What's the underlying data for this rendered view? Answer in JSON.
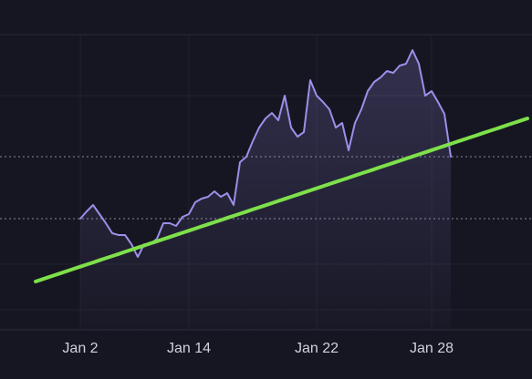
{
  "chart_data": {
    "type": "line",
    "categories": [
      null,
      null,
      null,
      null,
      null,
      null,
      null,
      null,
      null,
      null,
      null,
      null,
      "Jan 2",
      null,
      null,
      null,
      null,
      null,
      null,
      null,
      null,
      null,
      null,
      null,
      null,
      null,
      null,
      null,
      null,
      "Jan 14",
      null,
      null,
      null,
      null,
      null,
      null,
      null,
      null,
      null,
      null,
      null,
      null,
      null,
      null,
      null,
      null,
      null,
      null,
      null,
      "Jan 22",
      null,
      null,
      null,
      null,
      null,
      null,
      null,
      null,
      null,
      null,
      null,
      null,
      null,
      null,
      null,
      null,
      null,
      "Jan 28",
      null,
      null,
      null,
      null,
      null,
      null,
      null,
      null,
      null,
      null,
      null,
      null,
      null,
      null,
      null
    ],
    "ylim": [
      0,
      324
    ],
    "series": [
      {
        "color": "#9b8fe8",
        "area": true,
        "values": [
          null,
          null,
          null,
          null,
          null,
          null,
          null,
          null,
          null,
          null,
          null,
          null,
          122,
          130,
          137,
          127,
          117,
          106,
          104,
          104,
          94,
          80,
          94,
          94,
          100,
          117,
          117,
          114,
          124,
          127,
          140,
          144,
          146,
          152,
          146,
          150,
          137,
          184,
          190,
          207,
          222,
          232,
          238,
          230,
          257,
          222,
          212,
          217,
          274,
          257,
          250,
          242,
          222,
          227,
          197,
          227,
          242,
          262,
          272,
          277,
          284,
          282,
          290,
          292,
          307,
          292,
          257,
          262,
          250,
          237,
          190,
          null,
          null,
          null,
          null,
          null,
          null,
          null,
          null,
          null,
          null,
          null,
          null
        ]
      },
      {
        "color": "#7ee04a",
        "area": false,
        "values": [
          null,
          null,
          null,
          null,
          null,
          53.0,
          55.3,
          57.7,
          60.0,
          62.3,
          64.6,
          67.0,
          69.3,
          71.6,
          73.9,
          76.3,
          78.6,
          80.9,
          83.2,
          85.6,
          87.9,
          90.2,
          92.5,
          94.9,
          97.2,
          99.5,
          101.8,
          104.2,
          106.5,
          108.8,
          111.1,
          113.5,
          115.8,
          118.1,
          120.4,
          122.8,
          125.1,
          127.4,
          129.7,
          132.1,
          134.4,
          136.7,
          139.0,
          141.4,
          143.7,
          146.0,
          148.3,
          150.7,
          153.0,
          155.3,
          157.6,
          160.0,
          162.3,
          164.6,
          166.9,
          169.3,
          171.6,
          173.9,
          176.2,
          178.6,
          180.9,
          183.2,
          185.5,
          187.9,
          190.2,
          192.5,
          194.8,
          197.2,
          199.5,
          201.8,
          204.1,
          206.5,
          208.8,
          211.1,
          213.4,
          215.8,
          218.1,
          220.4,
          222.7,
          225.1,
          227.4,
          229.7,
          232.0
        ]
      }
    ]
  }
}
